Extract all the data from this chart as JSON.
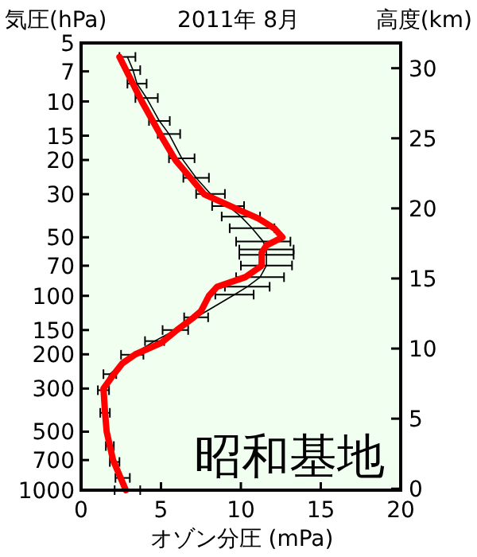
{
  "chart_data": {
    "type": "line",
    "title": "2011年 8月",
    "xlabel": "オゾン分圧 (mPa)",
    "ylabel": "気圧(hPa)",
    "y2label": "高度(km)",
    "annotations": [
      "昭和基地"
    ],
    "log": "y",
    "marker": "none",
    "grid": false,
    "xlim": [
      0,
      20
    ],
    "xticks": [
      0,
      5,
      10,
      15,
      20
    ],
    "ylim": [
      1000,
      5
    ],
    "yticks": [
      5,
      7,
      10,
      15,
      20,
      30,
      50,
      70,
      100,
      150,
      200,
      300,
      500,
      700,
      1000
    ],
    "y2lim": [
      -0.1,
      31.8
    ],
    "y2ticks": [
      0,
      5,
      10,
      15,
      20,
      25,
      30
    ],
    "series": [
      {
        "color": "#000000",
        "x": [
          2.9,
          3.25,
          3.5,
          4.1,
          4.9,
          5.5,
          6.3,
          7.2,
          8.1,
          9.2,
          10.0,
          10.7,
          11.4,
          11.6,
          11.6,
          11.6,
          11.2,
          10.4,
          9.6,
          7.2,
          5.9,
          4.6,
          3.2,
          1.8,
          1.4,
          1.5,
          1.8,
          2.1,
          2.6,
          2.9
        ],
        "values": [
          5.9,
          6.9,
          8.1,
          9.6,
          12.6,
          14.7,
          19.6,
          24.7,
          29.9,
          34.5,
          39.1,
          44.9,
          52.6,
          57.8,
          61.5,
          69.8,
          80.2,
          89.8,
          98.6,
          129,
          150,
          171,
          201,
          253,
          306,
          400,
          593,
          716,
          865,
          1000
        ],
        "xerrors": [
          0.5,
          0.45,
          0.6,
          0.7,
          0.65,
          0.7,
          0.8,
          0.8,
          0.9,
          1.0,
          1.2,
          1.4,
          1.7,
          1.7,
          1.7,
          1.6,
          1.5,
          1.4,
          1.2,
          0.75,
          0.8,
          0.6,
          0.7,
          0.4,
          0.35,
          0.3,
          0.25,
          0.3,
          0.45,
          0.8
        ]
      },
      {
        "color": "#ff0000",
        "x": [
          2.4,
          3.8,
          5.0,
          5.9,
          6.9,
          7.7,
          9.5,
          11.1,
          12.1,
          12.6,
          11.6,
          11.3,
          11.3,
          10.3,
          8.5,
          8.0,
          7.5,
          7.0,
          6.0,
          5.0,
          3.4,
          2.6,
          2.1,
          1.4,
          1.5,
          1.6,
          2.0,
          2.8
        ],
        "values": [
          5.9,
          10,
          15,
          20,
          25,
          30,
          35,
          40,
          45,
          50,
          55,
          60,
          70,
          80,
          90,
          100,
          120,
          130,
          150,
          175,
          200,
          222,
          250,
          300,
          400,
          500,
          700,
          1000
        ]
      }
    ]
  }
}
